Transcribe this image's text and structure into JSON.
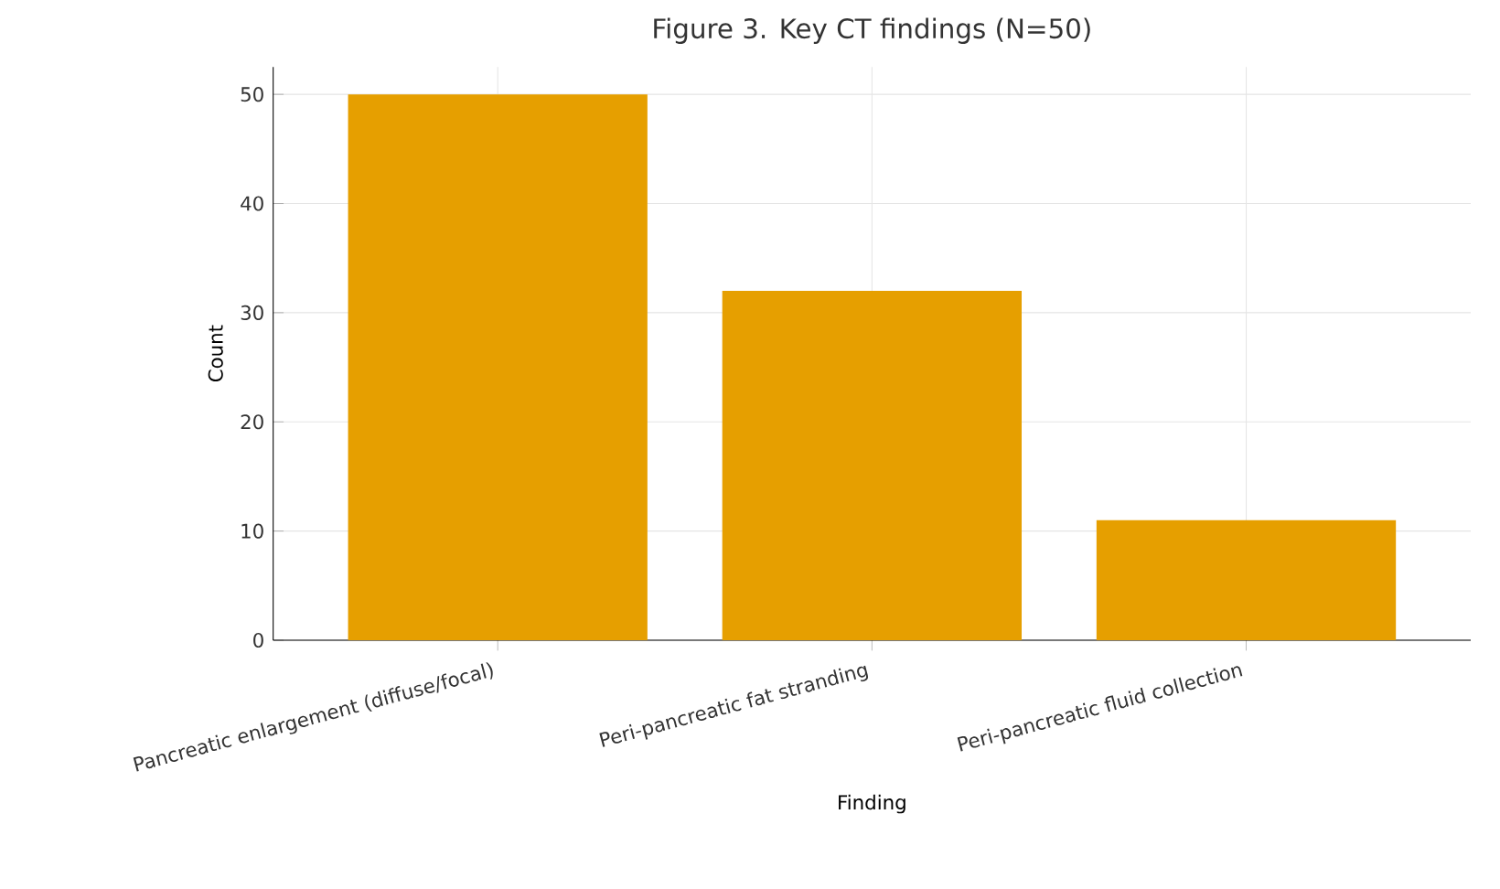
{
  "chart_data": {
    "type": "bar",
    "title": "Figure 3. Key CT findings (N=50)",
    "xlabel": "Finding",
    "ylabel": "Count",
    "categories": [
      "Pancreatic enlargement (diffuse/focal)",
      "Peri-pancreatic fat stranding",
      "Peri-pancreatic fluid collection"
    ],
    "values": [
      50,
      32,
      11
    ],
    "color": "#e69f00",
    "ylim": [
      0,
      52.5
    ],
    "yticks": [
      0,
      10,
      20,
      30,
      40,
      50
    ],
    "grid": true
  }
}
